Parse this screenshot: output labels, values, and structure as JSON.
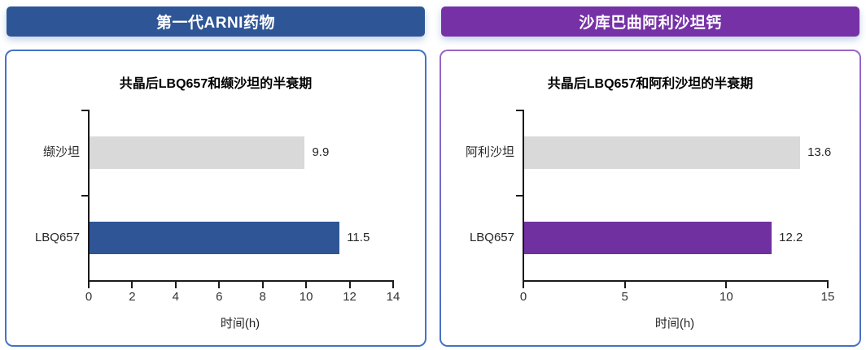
{
  "panels": [
    {
      "header": "第一代ARNI药物",
      "header_color": "#2E5596",
      "border_top_color": "#4472C4",
      "border_bottom_color": "#4472C4"
    },
    {
      "header": "沙库巴曲阿利沙坦钙",
      "header_color": "#7631A6",
      "border_top_color": "#9C64C8",
      "border_bottom_color": "#4472C4"
    }
  ],
  "chart_data": [
    {
      "type": "bar",
      "orientation": "horizontal",
      "title": "共晶后LBQ657和缬沙坦的半衰期",
      "categories": [
        "缬沙坦",
        "LBQ657"
      ],
      "values": [
        9.9,
        11.5
      ],
      "bar_colors": [
        "#D9D9D9",
        "#2F5597"
      ],
      "value_labels": [
        "9.9",
        "11.5"
      ],
      "xlabel": "时间(h)",
      "xlim": [
        0,
        14
      ],
      "xticks": [
        0,
        2,
        4,
        6,
        8,
        10,
        12,
        14
      ],
      "grid": false,
      "legend": "none"
    },
    {
      "type": "bar",
      "orientation": "horizontal",
      "title": "共晶后LBQ657和阿利沙坦的半衰期",
      "categories": [
        "阿利沙坦",
        "LBQ657"
      ],
      "values": [
        13.6,
        12.2
      ],
      "bar_colors": [
        "#D9D9D9",
        "#7030A0"
      ],
      "value_labels": [
        "13.6",
        "12.2"
      ],
      "xlabel": "时间(h)",
      "xlim": [
        0,
        15
      ],
      "xticks": [
        0,
        5,
        10,
        15
      ],
      "grid": false,
      "legend": "none"
    }
  ]
}
